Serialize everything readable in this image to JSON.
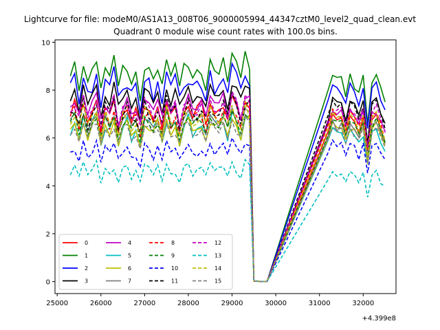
{
  "chart_data": {
    "type": "line",
    "suptitle": "Lightcurve for file: modeM0/AS1A13_008T06_9000005994_44347cztM0_level2_quad_clean.evt",
    "title": "Quadrant 0 module wise count rates with 100.0s bins.",
    "x_offset_label": "+4.399e8",
    "xlim": [
      24950,
      32750
    ],
    "ylim": [
      -0.5,
      10.1
    ],
    "xticks": [
      25000,
      26000,
      27000,
      28000,
      29000,
      30000,
      31000,
      32000
    ],
    "xtick_labels": [
      "25000",
      "26000",
      "27000",
      "28000",
      "29000",
      "30000",
      "31000",
      "32000"
    ],
    "yticks": [
      0,
      2,
      4,
      6,
      8,
      10
    ],
    "ytick_labels": [
      "0",
      "2",
      "4",
      "6",
      "8",
      "10"
    ],
    "legend_position": "lower-left",
    "segments": [
      {
        "start": 25300,
        "step": 100,
        "count": 46
      },
      {
        "start": 31200,
        "step": 100,
        "count": 14
      }
    ],
    "shape_early": [
      0.0,
      0.06,
      -0.03,
      0.08,
      -0.05,
      0.02,
      0.09,
      -0.07,
      0.04,
      -0.02,
      0.07,
      -0.06,
      0.03,
      0.05,
      -0.04,
      0.01,
      -0.08,
      0.06,
      0.02,
      -0.03,
      0.05,
      -0.05,
      0.08,
      -0.02,
      0.03,
      -0.06,
      0.04,
      0.07,
      -0.01,
      0.02,
      0.05,
      -0.04,
      0.06,
      0.01,
      0.03,
      0.08,
      -0.03,
      0.09,
      0.04,
      -0.02,
      0.1,
      0.06
    ],
    "shape_late": [
      -0.04,
      0.05,
      0.02,
      0.03,
      -0.06,
      0.04,
      0.01,
      -0.05,
      0.03,
      -0.2,
      0.02,
      0.05,
      -0.03,
      -0.1
    ],
    "transition_values": [
      0.02,
      0.01,
      0.0,
      0.0
    ],
    "series": [
      {
        "name": "0",
        "color": "#ff0000",
        "dashed": false,
        "base_early": 6.9,
        "base_late": 6.6
      },
      {
        "name": "1",
        "color": "#008000",
        "dashed": false,
        "base_early": 8.5,
        "base_late": 8.3
      },
      {
        "name": "2",
        "color": "#0000ff",
        "dashed": false,
        "base_early": 8.0,
        "base_late": 7.9
      },
      {
        "name": "3",
        "color": "#000000",
        "dashed": false,
        "base_early": 7.5,
        "base_late": 7.3
      },
      {
        "name": "4",
        "color": "#bf00bf",
        "dashed": false,
        "base_early": 7.1,
        "base_late": 6.9
      },
      {
        "name": "5",
        "color": "#00bfbf",
        "dashed": false,
        "base_early": 6.3,
        "base_late": 6.1
      },
      {
        "name": "6",
        "color": "#bfbf00",
        "dashed": false,
        "base_early": 6.2,
        "base_late": 6.3
      },
      {
        "name": "7",
        "color": "#808080",
        "dashed": false,
        "base_early": 6.5,
        "base_late": 6.4
      },
      {
        "name": "8",
        "color": "#ff0000",
        "dashed": true,
        "base_early": 6.7,
        "base_late": 6.8
      },
      {
        "name": "9",
        "color": "#008000",
        "dashed": true,
        "base_early": 6.4,
        "base_late": 6.5
      },
      {
        "name": "10",
        "color": "#0000ff",
        "dashed": true,
        "base_early": 5.3,
        "base_late": 5.6
      },
      {
        "name": "11",
        "color": "#000000",
        "dashed": true,
        "base_early": 6.9,
        "base_late": 7.2
      },
      {
        "name": "12",
        "color": "#bf00bf",
        "dashed": true,
        "base_early": 7.0,
        "base_late": 7.0
      },
      {
        "name": "13",
        "color": "#00bfbf",
        "dashed": true,
        "base_early": 4.5,
        "base_late": 4.4
      },
      {
        "name": "14",
        "color": "#bfbf00",
        "dashed": true,
        "base_early": 6.6,
        "base_late": 6.7
      },
      {
        "name": "15",
        "color": "#808080",
        "dashed": true,
        "base_early": 6.1,
        "base_late": 6.2
      }
    ]
  }
}
